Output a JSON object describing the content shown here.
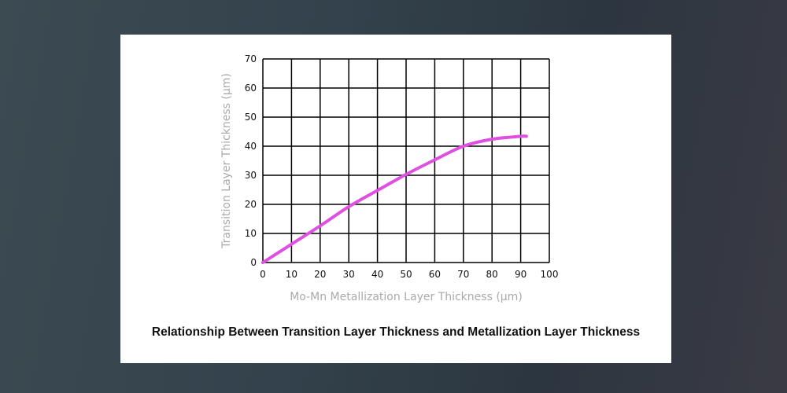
{
  "chart_data": {
    "type": "line",
    "title": "Relationship Between Transition Layer Thickness and Metallization Layer Thickness",
    "xlabel": "Mo-Mn Metallization Layer Thickness (μm)",
    "ylabel": "Transition Layer Thickness (μm)",
    "xlim": [
      0,
      100
    ],
    "ylim": [
      0,
      70
    ],
    "xticks": [
      0,
      10,
      20,
      30,
      40,
      50,
      60,
      70,
      80,
      90,
      100
    ],
    "yticks": [
      0,
      10,
      20,
      30,
      40,
      50,
      60,
      70
    ],
    "grid": true,
    "line_color": "#e050e0",
    "series": [
      {
        "x": [
          0,
          10,
          20,
          30,
          40,
          50,
          60,
          70,
          80,
          90,
          92
        ],
        "y": [
          0,
          6.3,
          12.6,
          19.2,
          24.8,
          30.3,
          35.3,
          40,
          42.4,
          43.4,
          43.4
        ]
      }
    ]
  }
}
